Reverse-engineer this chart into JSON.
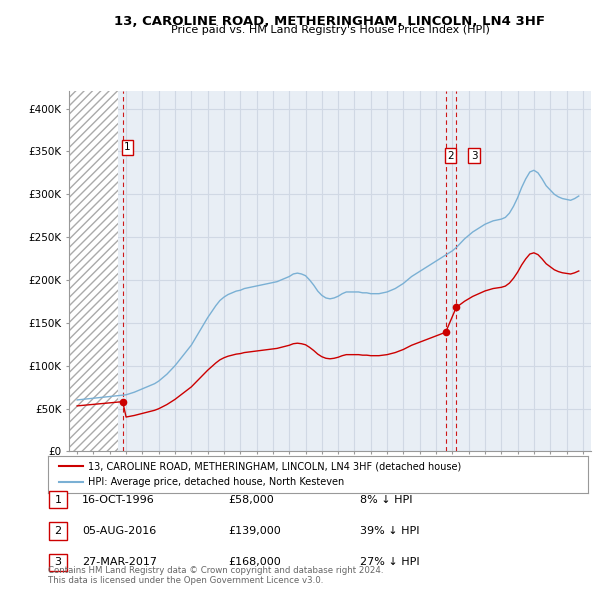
{
  "title": "13, CAROLINE ROAD, METHERINGHAM, LINCOLN, LN4 3HF",
  "subtitle": "Price paid vs. HM Land Registry's House Price Index (HPI)",
  "red_label": "13, CAROLINE ROAD, METHERINGHAM, LINCOLN, LN4 3HF (detached house)",
  "blue_label": "HPI: Average price, detached house, North Kesteven",
  "footer": "Contains HM Land Registry data © Crown copyright and database right 2024.\nThis data is licensed under the Open Government Licence v3.0.",
  "transactions": [
    {
      "num": 1,
      "date": "16-OCT-1996",
      "price": "£58,000",
      "pct": "8% ↓ HPI",
      "year": 1996.79
    },
    {
      "num": 2,
      "date": "05-AUG-2016",
      "price": "£139,000",
      "pct": "39% ↓ HPI",
      "year": 2016.59
    },
    {
      "num": 3,
      "date": "27-MAR-2017",
      "price": "£168,000",
      "pct": "27% ↓ HPI",
      "year": 2017.24
    }
  ],
  "red_values": [
    58000,
    139000,
    168000
  ],
  "ylim": [
    0,
    420000
  ],
  "yticks": [
    0,
    50000,
    100000,
    150000,
    200000,
    250000,
    300000,
    350000,
    400000
  ],
  "ytick_labels": [
    "£0",
    "£50K",
    "£100K",
    "£150K",
    "£200K",
    "£250K",
    "£300K",
    "£350K",
    "£400K"
  ],
  "xlim_start": 1993.5,
  "xlim_end": 2025.5,
  "bg_hatch_end": 1996.5,
  "red_color": "#cc0000",
  "blue_color": "#7ab0d4",
  "grid_color": "#d0d8e4",
  "bg_color": "#e8eef5",
  "hpi_years": [
    1994,
    1994.25,
    1994.5,
    1994.75,
    1995,
    1995.25,
    1995.5,
    1995.75,
    1996,
    1996.25,
    1996.5,
    1996.75,
    1997,
    1997.25,
    1997.5,
    1997.75,
    1998,
    1998.25,
    1998.5,
    1998.75,
    1999,
    1999.25,
    1999.5,
    1999.75,
    2000,
    2000.25,
    2000.5,
    2000.75,
    2001,
    2001.25,
    2001.5,
    2001.75,
    2002,
    2002.25,
    2002.5,
    2002.75,
    2003,
    2003.25,
    2003.5,
    2003.75,
    2004,
    2004.25,
    2004.5,
    2004.75,
    2005,
    2005.25,
    2005.5,
    2005.75,
    2006,
    2006.25,
    2006.5,
    2006.75,
    2007,
    2007.25,
    2007.5,
    2007.75,
    2008,
    2008.25,
    2008.5,
    2008.75,
    2009,
    2009.25,
    2009.5,
    2009.75,
    2010,
    2010.25,
    2010.5,
    2010.75,
    2011,
    2011.25,
    2011.5,
    2011.75,
    2012,
    2012.25,
    2012.5,
    2012.75,
    2013,
    2013.25,
    2013.5,
    2013.75,
    2014,
    2014.25,
    2014.5,
    2014.75,
    2015,
    2015.25,
    2015.5,
    2015.75,
    2016,
    2016.25,
    2016.5,
    2016.75,
    2017,
    2017.25,
    2017.5,
    2017.75,
    2018,
    2018.25,
    2018.5,
    2018.75,
    2019,
    2019.25,
    2019.5,
    2019.75,
    2020,
    2020.25,
    2020.5,
    2020.75,
    2021,
    2021.25,
    2021.5,
    2021.75,
    2022,
    2022.25,
    2022.5,
    2022.75,
    2023,
    2023.25,
    2023.5,
    2023.75,
    2024,
    2024.25,
    2024.5,
    2024.75
  ],
  "hpi_values": [
    60000,
    60500,
    61000,
    61500,
    62000,
    62500,
    63000,
    63500,
    64000,
    64500,
    65000,
    65500,
    66000,
    67500,
    69000,
    71000,
    73000,
    75000,
    77000,
    79000,
    82000,
    86000,
    90000,
    95000,
    100000,
    106000,
    112000,
    118000,
    124000,
    132000,
    140000,
    148000,
    156000,
    163000,
    170000,
    176000,
    180000,
    183000,
    185000,
    187000,
    188000,
    190000,
    191000,
    192000,
    193000,
    194000,
    195000,
    196000,
    197000,
    198000,
    200000,
    202000,
    204000,
    207000,
    208000,
    207000,
    205000,
    200000,
    194000,
    187000,
    182000,
    179000,
    178000,
    179000,
    181000,
    184000,
    186000,
    186000,
    186000,
    186000,
    185000,
    185000,
    184000,
    184000,
    184000,
    185000,
    186000,
    188000,
    190000,
    193000,
    196000,
    200000,
    204000,
    207000,
    210000,
    213000,
    216000,
    219000,
    222000,
    225000,
    228000,
    231000,
    234000,
    238000,
    243000,
    248000,
    252000,
    256000,
    259000,
    262000,
    265000,
    267000,
    269000,
    270000,
    271000,
    273000,
    278000,
    286000,
    296000,
    308000,
    318000,
    326000,
    328000,
    325000,
    318000,
    310000,
    305000,
    300000,
    297000,
    295000,
    294000,
    293000,
    295000,
    298000
  ]
}
